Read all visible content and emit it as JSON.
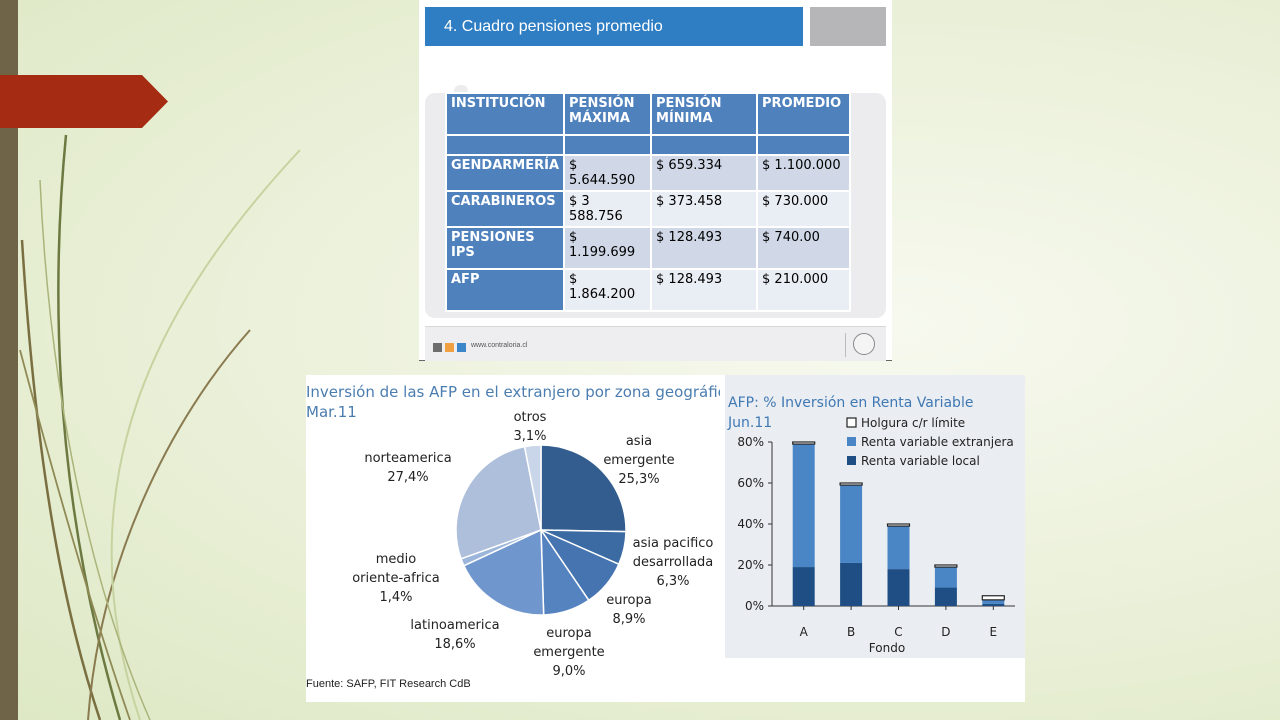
{
  "slide": {
    "title": "4. Cuadro pensiones promedio",
    "footer_url": "www.contraloria.cl",
    "footer_squares": [
      "#6d6d6d",
      "#f0a040",
      "#3a86c8"
    ],
    "title_color": "#2f7ec3"
  },
  "table": {
    "headers": [
      [
        "INSTITUCIÓN"
      ],
      [
        "PENSIÓN",
        "MÁXIMA"
      ],
      [
        "PENSIÓN",
        "MÍNIMA"
      ],
      [
        "PROMEDIO"
      ]
    ],
    "rows": [
      {
        "label": "GENDARMERÍA",
        "max": "$ 5.644.590",
        "min": "$ 659.334",
        "avg": "$ 1.100.000"
      },
      {
        "label": "CARABINEROS",
        "max": "$ 3 588.756",
        "min": "$ 373.458",
        "avg": "$ 730.000"
      },
      {
        "label": "PENSIONES IPS",
        "max": "$ 1.199.699",
        "min": "$ 128.493",
        "avg": "$ 740.00"
      },
      {
        "label": "AFP",
        "max": "$ 1.864.200",
        "min": "$ 128.493",
        "avg": "$ 210.000"
      }
    ]
  },
  "chart_data": [
    {
      "type": "pie",
      "title": "Inversión de las AFP en el extranjero por zona geográfica",
      "subtitle": "Mar.11",
      "source": "Fuente: SAFP, FIT Research CdB",
      "slices": [
        {
          "label": [
            "asia",
            "emergente"
          ],
          "value": 25.3,
          "text": "25,3%",
          "color": "#335d8f"
        },
        {
          "label": [
            "asia pacifico",
            "desarrollada"
          ],
          "value": 6.3,
          "text": "6,3%",
          "color": "#3c6ba3"
        },
        {
          "label": [
            "europa"
          ],
          "value": 8.9,
          "text": "8,9%",
          "color": "#4574b0"
        },
        {
          "label": [
            "europa",
            "emergente"
          ],
          "value": 9.0,
          "text": "9,0%",
          "color": "#5483c0"
        },
        {
          "label": [
            "latinoamerica"
          ],
          "value": 18.6,
          "text": "18,6%",
          "color": "#6f97cd"
        },
        {
          "label": [
            "medio",
            "oriente-africa"
          ],
          "value": 1.4,
          "text": "1,4%",
          "color": "#9cb6db"
        },
        {
          "label": [
            "norteamerica"
          ],
          "value": 27.4,
          "text": "27,4%",
          "color": "#aebfdc"
        },
        {
          "label": [
            "otros"
          ],
          "value": 3.1,
          "text": "3,1%",
          "color": "#c9d5e9"
        }
      ]
    },
    {
      "type": "bar",
      "title": "AFP: % Inversión en Renta Variable",
      "subtitle": "Jun.11",
      "xlabel": "Fondo",
      "ylabel": "",
      "categories": [
        "A",
        "B",
        "C",
        "D",
        "E"
      ],
      "ylim": [
        0,
        80
      ],
      "yticks": [
        "0%",
        "20%",
        "40%",
        "60%",
        "80%"
      ],
      "stacked": true,
      "series": [
        {
          "name": "Renta variable local",
          "values": [
            19,
            21,
            18,
            9,
            1
          ],
          "color": "#1f4e85"
        },
        {
          "name": "Renta variable extranjera",
          "values": [
            60,
            38,
            21,
            10,
            2
          ],
          "color": "#4a86c6"
        },
        {
          "name": "Holgura c/r límite",
          "values": [
            1,
            1,
            1,
            1,
            2
          ],
          "color": "#ffffff"
        }
      ]
    }
  ]
}
